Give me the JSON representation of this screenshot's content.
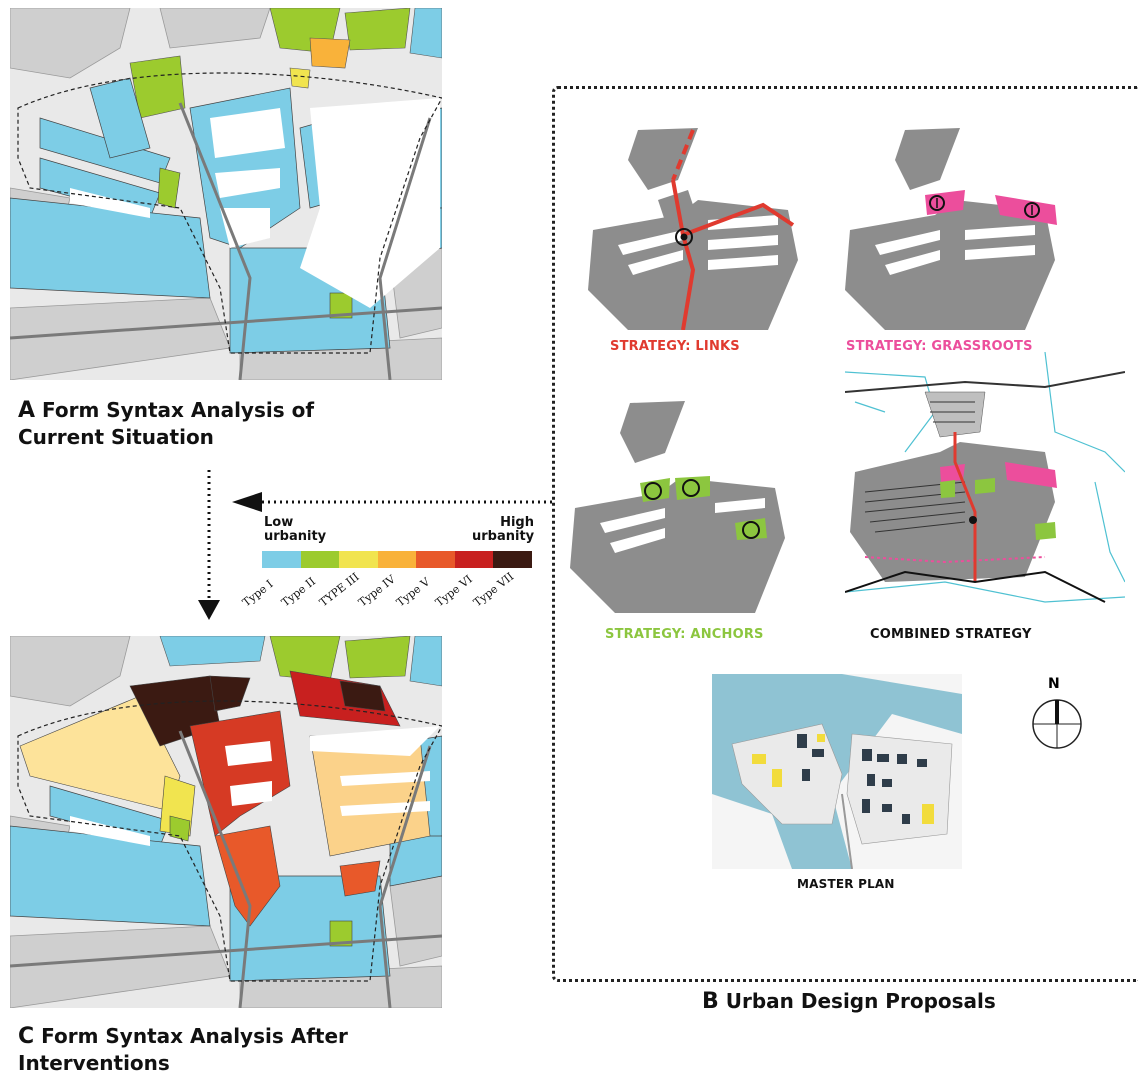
{
  "panel_a": {
    "letter": "A",
    "caption_line1": "Form Syntax Analysis of",
    "caption_line2": "Current Situation"
  },
  "panel_b": {
    "letter": "B",
    "caption": "Urban Design Proposals",
    "strategies": {
      "links": "STRATEGY: LINKS",
      "grassroots": "STRATEGY: GRASSROOTS",
      "anchors": "STRATEGY: ANCHORS",
      "combined": "COMBINED STRATEGY",
      "master_plan": "MASTER PLAN"
    },
    "compass_label": "N"
  },
  "panel_c": {
    "letter": "C",
    "caption_line1": "Form Syntax Analysis After",
    "caption_line2": "Interventions"
  },
  "legend": {
    "low_line1": "Low",
    "low_line2": "urbanity",
    "high_line1": "High",
    "high_line2": "urbanity",
    "types": [
      {
        "label": "Type I",
        "color": "#7dcde6"
      },
      {
        "label": "Type II",
        "color": "#9ccb2e"
      },
      {
        "label": "TYPE III",
        "color": "#f1e44f"
      },
      {
        "label": "Type IV",
        "color": "#f9b23a"
      },
      {
        "label": "Type V",
        "color": "#e8592a"
      },
      {
        "label": "Type VI",
        "color": "#c8201f"
      },
      {
        "label": "Type VII",
        "color": "#3b1a12"
      }
    ]
  },
  "colors": {
    "links": "#e03a2f",
    "grassroots": "#ec4e9c",
    "anchors": "#8cc63f",
    "combined": "#111111",
    "water_master": "#8fc3d3",
    "land_grey": "#8d8d8d"
  }
}
